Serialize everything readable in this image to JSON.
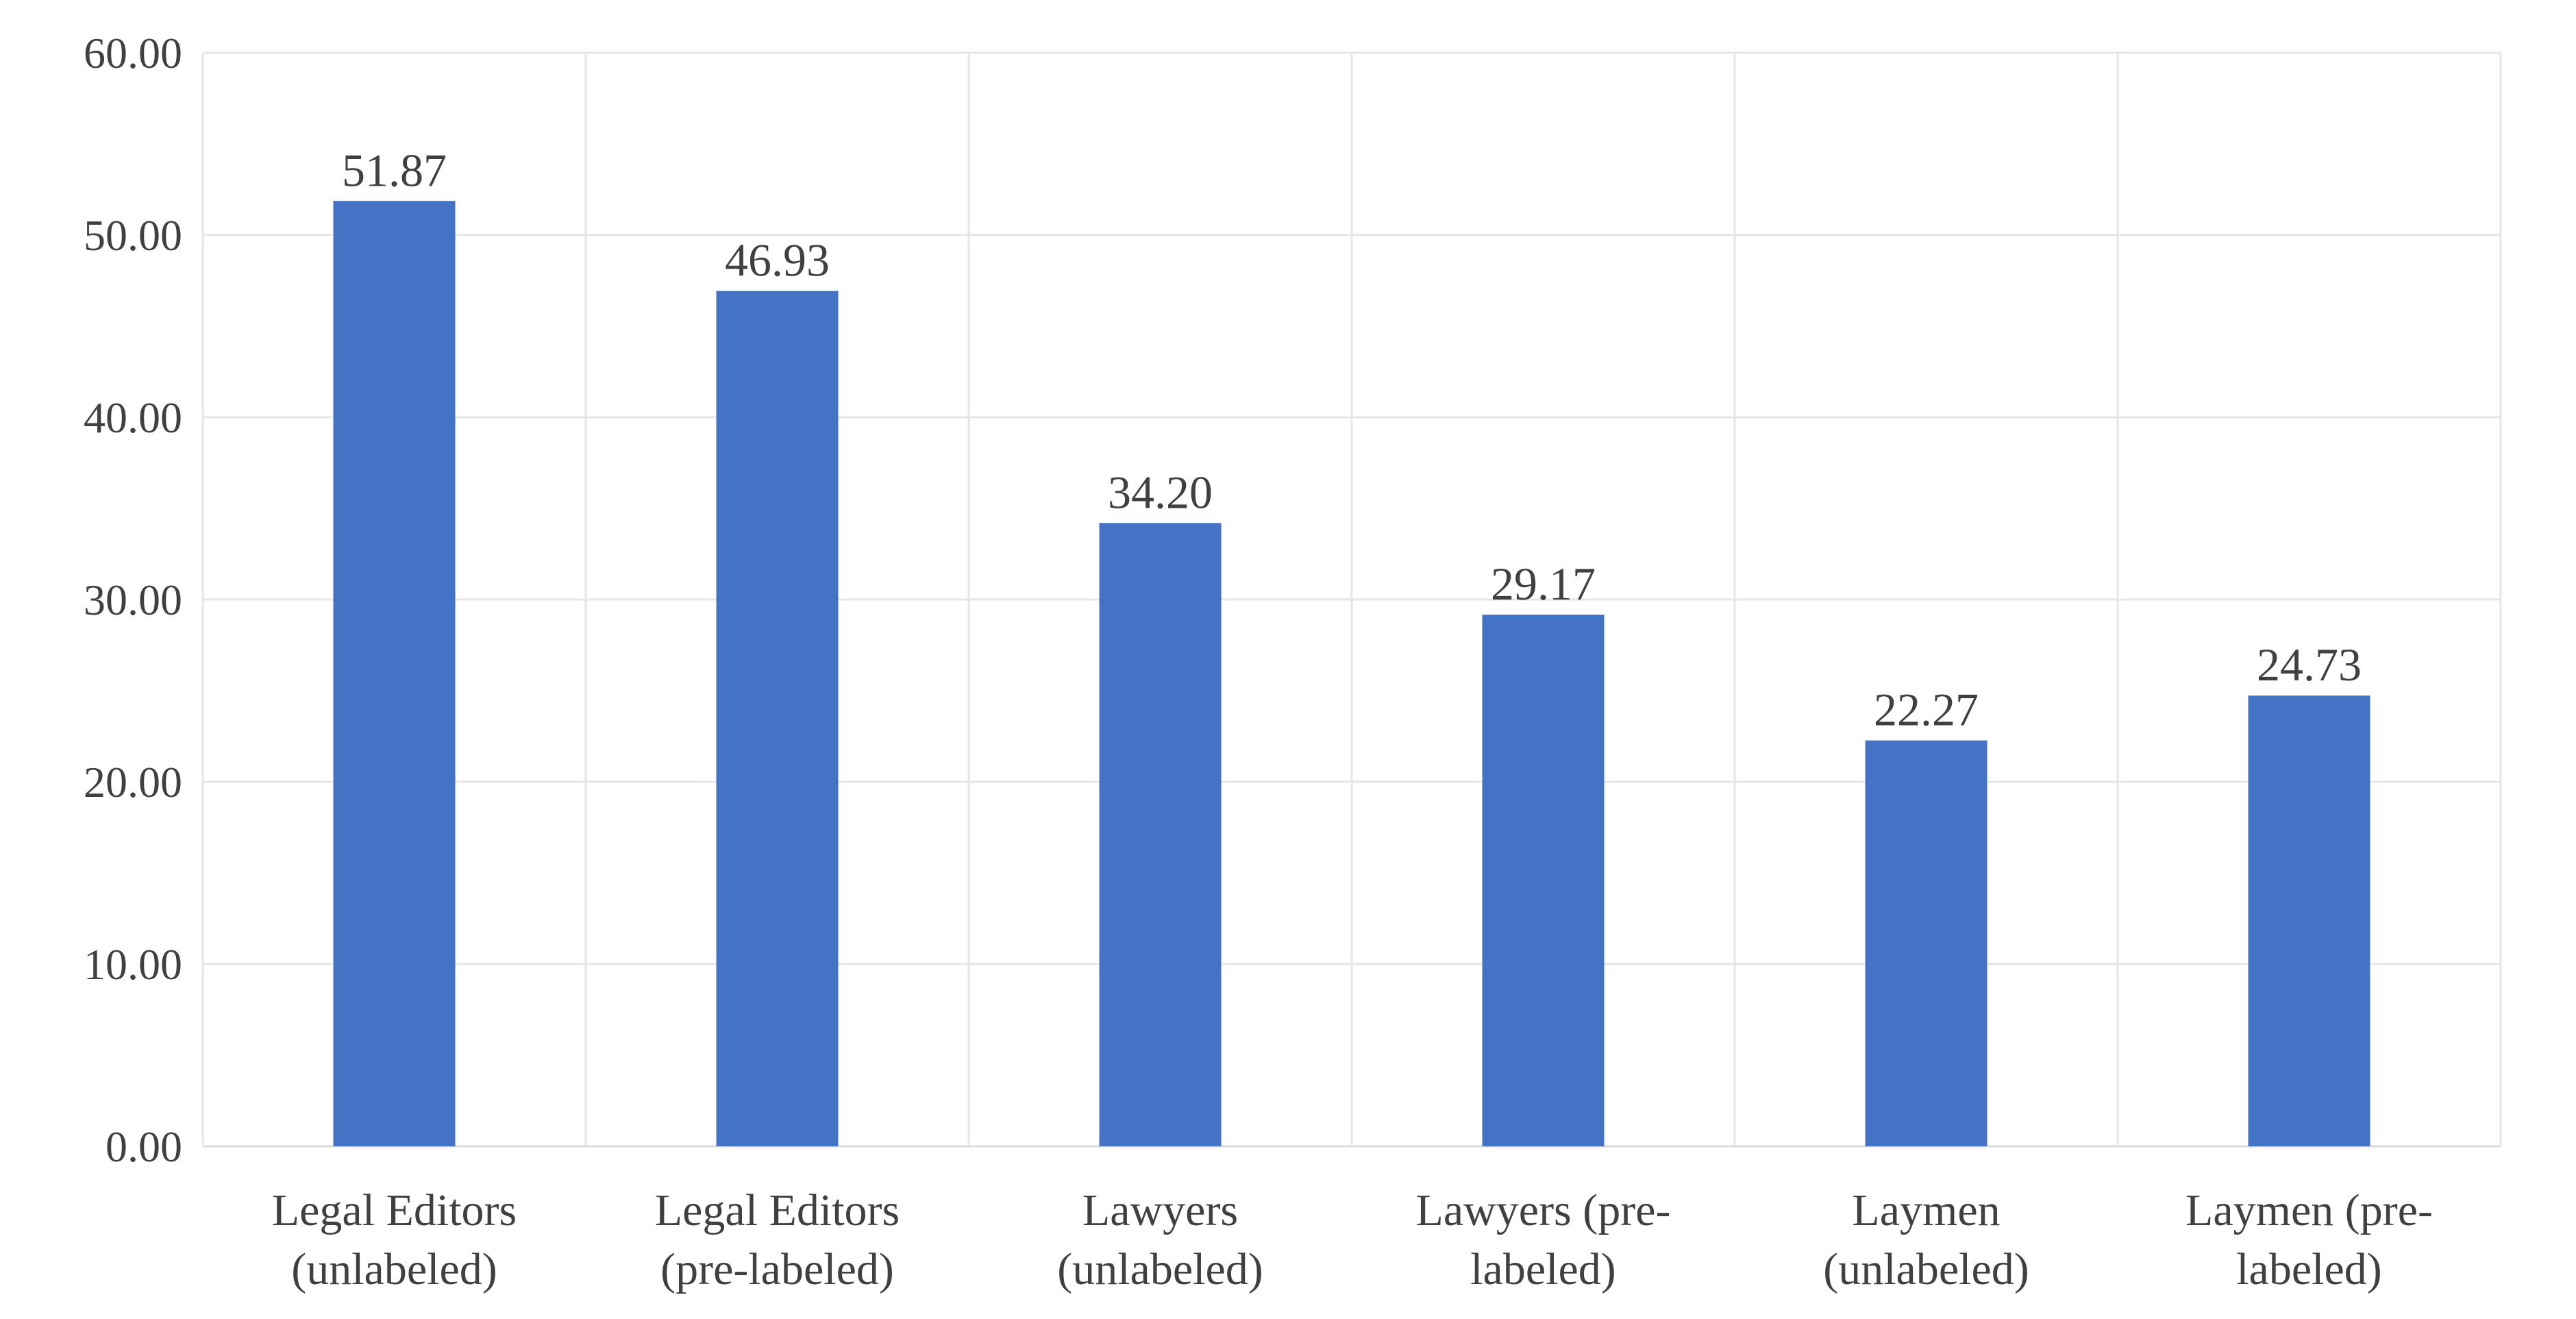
{
  "chart_data": {
    "type": "bar",
    "categories": [
      [
        "Legal Editors",
        "(unlabeled)"
      ],
      [
        "Legal Editors",
        "(pre-labeled)"
      ],
      [
        "Lawyers",
        "(unlabeled)"
      ],
      [
        "Lawyers (pre-",
        "labeled)"
      ],
      [
        "Laymen",
        "(unlabeled)"
      ],
      [
        "Laymen (pre-",
        "labeled)"
      ]
    ],
    "values": [
      51.87,
      46.93,
      34.2,
      29.17,
      22.27,
      24.73
    ],
    "value_labels": [
      "51.87",
      "46.93",
      "34.20",
      "29.17",
      "22.27",
      "24.73"
    ],
    "yticks": [
      "0.00",
      "10.00",
      "20.00",
      "30.00",
      "40.00",
      "50.00",
      "60.00"
    ],
    "ylim": [
      0,
      60
    ],
    "grid": true,
    "legend": "none",
    "colors": {
      "bar": "#4472C4",
      "grid": "#E6E6E6",
      "text": "#404040"
    }
  }
}
